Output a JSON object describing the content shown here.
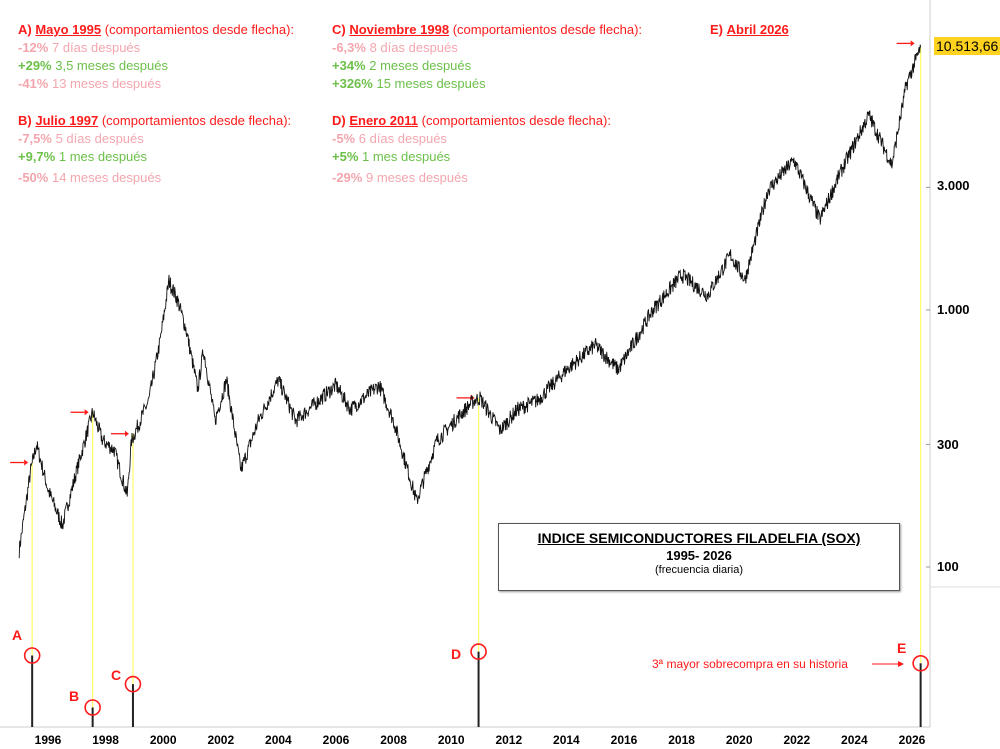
{
  "notes": [
    {
      "id": "A",
      "prefix": "A)",
      "date": "Mayo 1995",
      "suffix": "(comportamientos desde flecha):",
      "lines": [
        {
          "pct": "-12%",
          "text": "7 días después",
          "sign": "neg"
        },
        {
          "pct": "+29%",
          "text": "3,5 meses después",
          "sign": "pos"
        },
        {
          "pct": "-41%",
          "text": "13 meses después",
          "sign": "neg"
        }
      ]
    },
    {
      "id": "B",
      "prefix": "B)",
      "date": "Julio 1997",
      "suffix": "(comportamientos desde flecha):",
      "lines": [
        {
          "pct": "-7,5%",
          "text": "5 días después",
          "sign": "neg"
        },
        {
          "pct": "+9,7%",
          "text": "1 mes después",
          "sign": "pos"
        },
        {
          "pct": "-50%",
          "text": "14 meses después",
          "sign": "neg"
        }
      ]
    },
    {
      "id": "C",
      "prefix": "C)",
      "date": "Noviembre 1998",
      "suffix": "(comportamientos desde flecha):",
      "lines": [
        {
          "pct": "-6,3%",
          "text": "8 días después",
          "sign": "neg"
        },
        {
          "pct": "+34%",
          "text": "2 meses después",
          "sign": "pos"
        },
        {
          "pct": "+326%",
          "text": "15 meses después",
          "sign": "pos"
        }
      ]
    },
    {
      "id": "D",
      "prefix": "D)",
      "date": "Enero 2011",
      "suffix": "(comportamientos desde flecha):",
      "lines": [
        {
          "pct": "-5%",
          "text": "6 días después",
          "sign": "neg"
        },
        {
          "pct": "+5%",
          "text": "1 mes después",
          "sign": "pos"
        },
        {
          "pct": "-29%",
          "text": "9 meses después",
          "sign": "neg"
        }
      ]
    },
    {
      "id": "E",
      "prefix": "E)",
      "date": "Abril 2026"
    }
  ],
  "title_box": {
    "title": "INDICE SEMICONDUCTORES FILADELFIA (SOX)",
    "period": "1995- 2026",
    "frequency": "(frecuencia diaria)"
  },
  "last_price": "10.513,66",
  "overbought_note": "3ª mayor sobrecompra en su historia",
  "colors": {
    "red": "#ff1a1a",
    "neg": "#f4a6ae",
    "pos": "#6cc04a",
    "tag": "#ffd21f",
    "guide": "#ffff66"
  },
  "chart_data": {
    "type": "line",
    "title": "INDICE SEMICONDUCTORES FILADELFIA (SOX)",
    "yscale": "log",
    "ylim": [
      80,
      12000
    ],
    "xlim": [
      1995.3,
      2026.8
    ],
    "y_ticks": [
      {
        "v": 100,
        "label": "100"
      },
      {
        "v": 300,
        "label": "300"
      },
      {
        "v": 1000,
        "label": "1.000"
      },
      {
        "v": 3000,
        "label": "3.000"
      }
    ],
    "x_ticks": [
      "1996",
      "1998",
      "2000",
      "2002",
      "2004",
      "2006",
      "2008",
      "2010",
      "2012",
      "2014",
      "2016",
      "2018",
      "2020",
      "2022",
      "2024",
      "2026"
    ],
    "series": [
      {
        "name": "SOX",
        "x": [
          1995.0,
          1995.4,
          1995.6,
          1996.0,
          1996.5,
          1997.0,
          1997.55,
          1997.9,
          1998.3,
          1998.75,
          1998.9,
          1999.5,
          1999.9,
          2000.2,
          2000.5,
          2000.8,
          2001.2,
          2001.4,
          2001.8,
          2002.2,
          2002.7,
          2003.3,
          2004.0,
          2004.6,
          2006.0,
          2006.5,
          2007.5,
          2008.0,
          2008.8,
          2009.5,
          2010.3,
          2010.8,
          2011.0,
          2011.7,
          2012.3,
          2013.0,
          2014.0,
          2015.0,
          2015.8,
          2017.0,
          2018.0,
          2018.9,
          2019.7,
          2020.2,
          2021.0,
          2021.9,
          2022.8,
          2023.5,
          2024.5,
          2025.3,
          2025.8,
          2026.3
        ],
        "y": [
          116,
          238,
          300,
          200,
          145,
          238,
          400,
          310,
          285,
          190,
          310,
          445,
          765,
          1300,
          1090,
          835,
          490,
          700,
          370,
          535,
          238,
          370,
          535,
          370,
          510,
          410,
          510,
          370,
          180,
          310,
          390,
          445,
          455,
          340,
          410,
          445,
          585,
          730,
          585,
          1000,
          1370,
          1140,
          1640,
          1310,
          2930,
          3830,
          2240,
          3400,
          5740,
          3670,
          7500,
          10514
        ]
      }
    ],
    "markers": [
      {
        "label": "A",
        "x": 1995.45,
        "y": 255,
        "osc_level": 0.55
      },
      {
        "label": "B",
        "x": 1997.55,
        "y": 400,
        "osc_level": 0.15
      },
      {
        "label": "C",
        "x": 1998.95,
        "y": 330,
        "osc_level": 0.33
      },
      {
        "label": "D",
        "x": 2010.95,
        "y": 455,
        "osc_level": 0.58
      },
      {
        "label": "E",
        "x": 2026.3,
        "y": 10514,
        "osc_level": 0.49
      }
    ]
  }
}
